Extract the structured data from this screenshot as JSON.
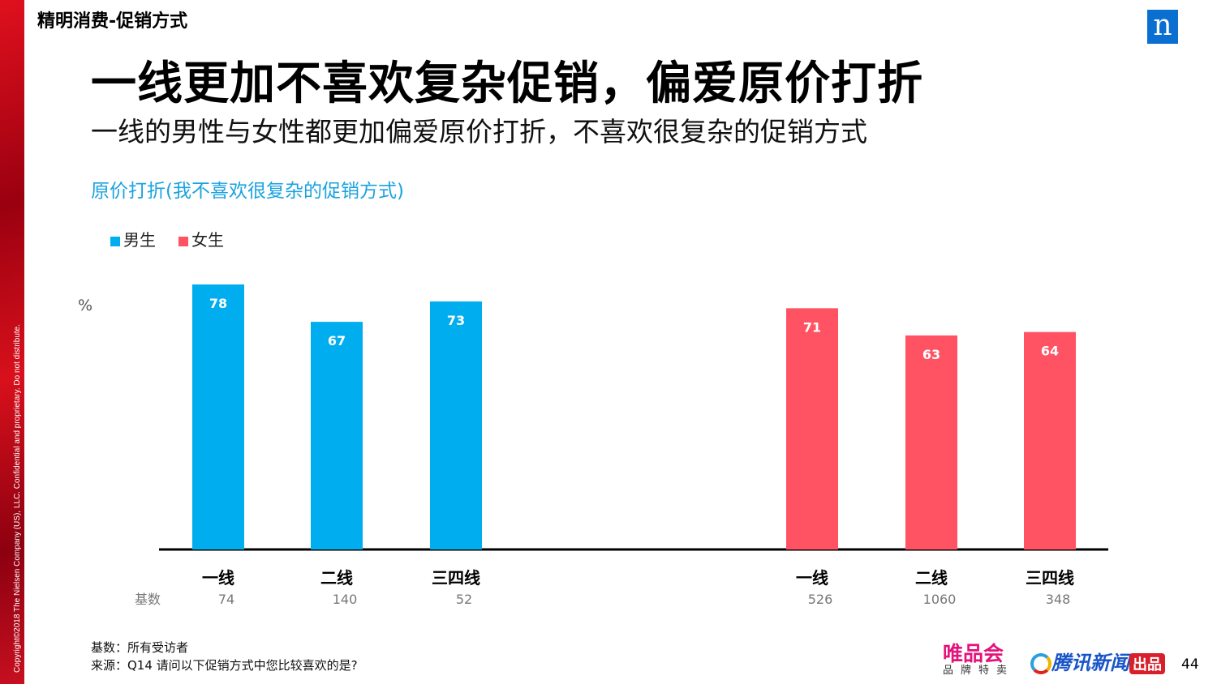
{
  "section": "精明消费-促销方式",
  "copyright": "Copyright©2018 The Nielsen Company (US), LLC. Confidential and proprietary. Do not distribute.",
  "logo": "n",
  "title": "一线更加不喜欢复杂促销，偏爱原价打折",
  "subtitle": "一线的男性与女性都更加偏爱原价打折，不喜欢很复杂的促销方式",
  "footer": {
    "base": "基数：所有受访者",
    "source": "来源：Q14 请问以下促销方式中您比较喜欢的是?",
    "page": "44"
  },
  "brands": {
    "vip": "唯品会",
    "vip_sub": "品牌特卖",
    "tencent": "腾讯新闻",
    "tencent_tag": "出品"
  },
  "colors": {
    "male": "#00adee",
    "female": "#ff5263"
  },
  "chart_data": {
    "type": "bar",
    "title": "原价打折(我不喜欢很复杂的促销方式)",
    "ylabel": "%",
    "ylim": [
      0,
      100
    ],
    "grid": false,
    "legend_position": "top-left",
    "base_label": "基数",
    "groups": [
      {
        "series": "男生",
        "categories": [
          "一线",
          "二线",
          "三四线"
        ],
        "values": [
          78,
          67,
          73
        ],
        "base": [
          "74",
          "140",
          "52"
        ]
      },
      {
        "series": "女生",
        "categories": [
          "一线",
          "二线",
          "三四线"
        ],
        "values": [
          71,
          63,
          64
        ],
        "base": [
          "526",
          "1060",
          "348"
        ]
      }
    ],
    "legend": [
      "男生",
      "女生"
    ]
  }
}
